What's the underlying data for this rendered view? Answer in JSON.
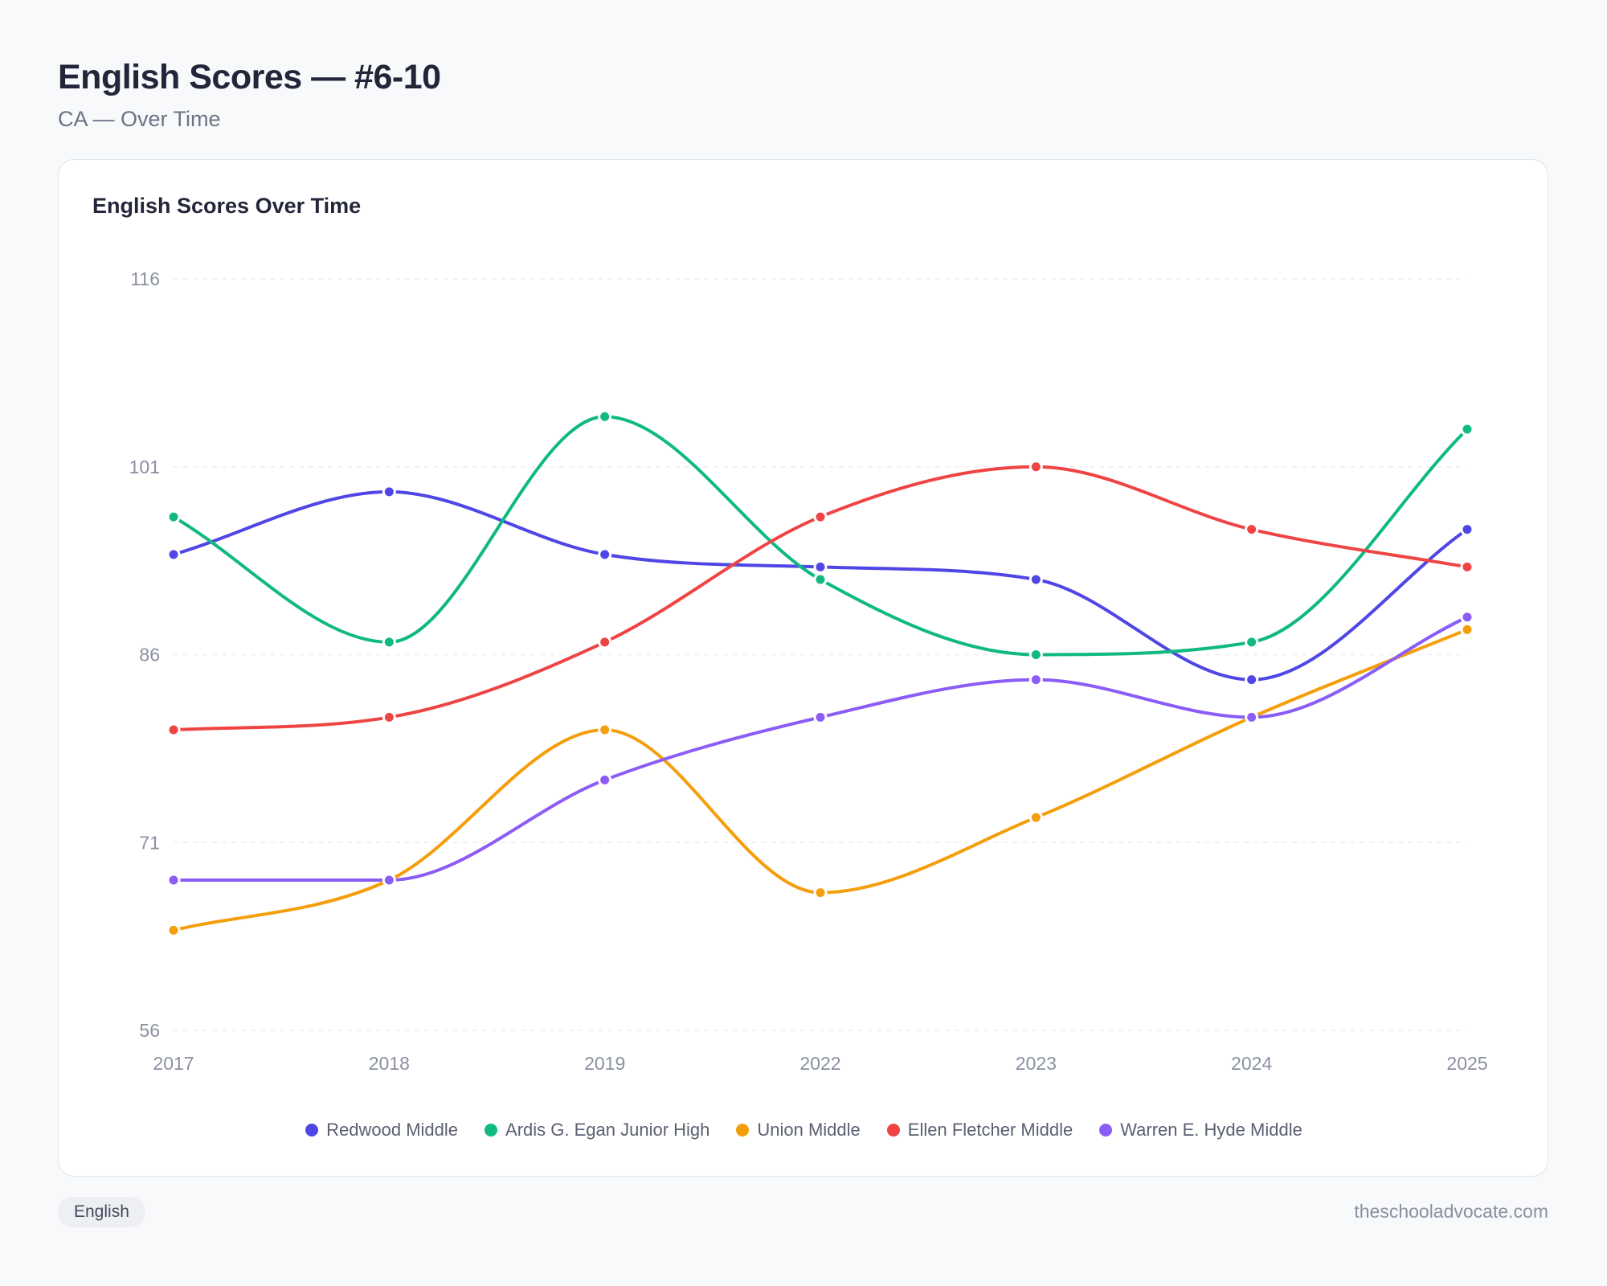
{
  "page": {
    "title": "English Scores — #6-10",
    "subtitle": "CA — Over Time",
    "tag": "English",
    "source": "theschooladvocate.com"
  },
  "card": {
    "title": "English Scores Over Time"
  },
  "chart_data": {
    "type": "line",
    "title": "English Scores Over Time",
    "xlabel": "",
    "ylabel": "",
    "categories": [
      "2017",
      "2018",
      "2019",
      "2022",
      "2023",
      "2024",
      "2025"
    ],
    "ylim": [
      56,
      116
    ],
    "yticks": [
      56,
      71,
      86,
      101,
      116
    ],
    "grid": "horizontal dashed",
    "legend_position": "bottom",
    "smooth": true,
    "series": [
      {
        "name": "Redwood Middle",
        "color": "#4f46e5",
        "values": [
          94,
          99,
          94,
          93,
          92,
          84,
          96
        ]
      },
      {
        "name": "Ardis G. Egan Junior High",
        "color": "#10b981",
        "values": [
          97,
          87,
          105,
          92,
          86,
          87,
          104
        ]
      },
      {
        "name": "Union Middle",
        "color": "#f59e0b",
        "values": [
          64,
          68,
          80,
          67,
          73,
          81,
          88
        ]
      },
      {
        "name": "Ellen Fletcher Middle",
        "color": "#ef4444",
        "values": [
          80,
          81,
          87,
          97,
          101,
          96,
          93
        ]
      },
      {
        "name": "Warren E. Hyde Middle",
        "color": "#8b5cf6",
        "values": [
          68,
          68,
          76,
          81,
          84,
          81,
          89
        ]
      }
    ]
  }
}
